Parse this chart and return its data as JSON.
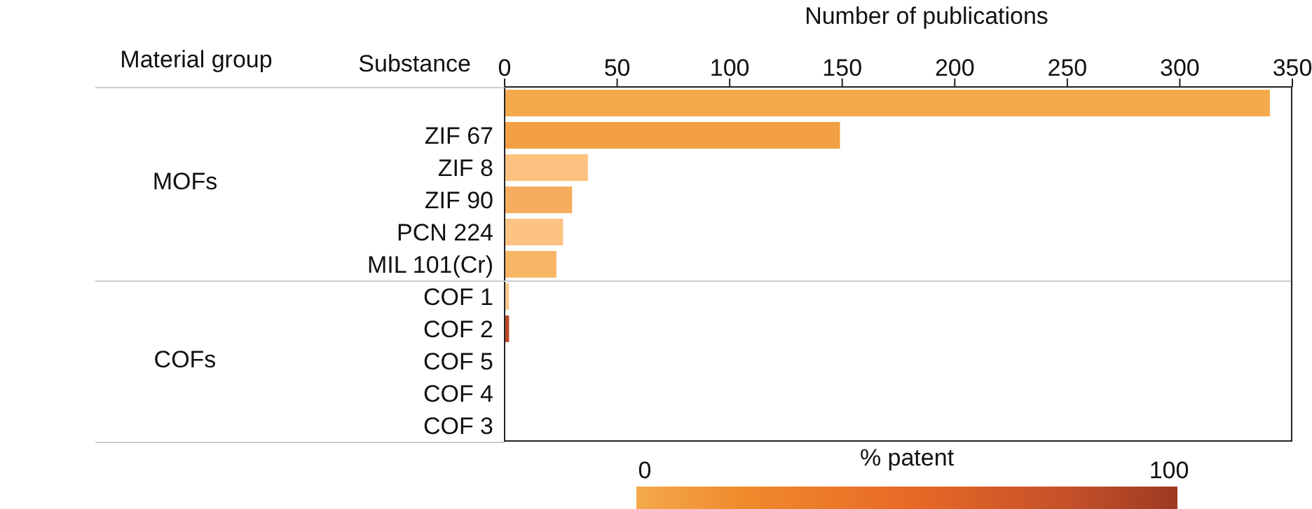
{
  "chart_data": {
    "type": "bar",
    "orientation": "horizontal",
    "xlabel": "Number of publications",
    "ylabel": "Substance",
    "categories": [
      null,
      "ZIF 67",
      "ZIF 8",
      "ZIF 90",
      "PCN 224",
      "MIL 101(Cr)",
      "COF 1",
      "COF 2",
      "COF 5",
      "COF 4",
      "COF 3"
    ],
    "values": [
      340,
      149,
      37,
      30,
      26,
      23,
      2,
      2,
      0,
      0,
      0
    ],
    "colors": [
      "#f4a94c",
      "#f2a043",
      "#fdc27f",
      "#f7ad5e",
      "#fcc383",
      "#f9b566",
      "#fdc98f",
      "#b84a2a",
      null,
      null,
      null
    ],
    "xlim": [
      0,
      350
    ],
    "xticks": [
      0,
      50,
      100,
      150,
      200,
      250,
      300,
      350
    ],
    "annotations": [
      "Material group",
      "MOFs",
      "COFs"
    ],
    "clabel": "% patent",
    "clim": [
      0,
      100
    ],
    "cticks": [
      0,
      100
    ]
  }
}
